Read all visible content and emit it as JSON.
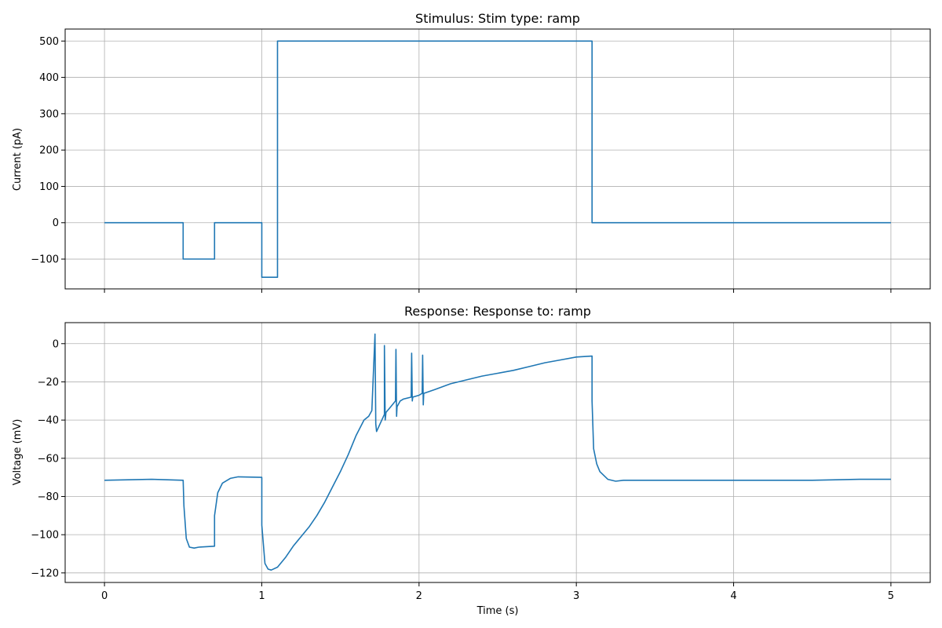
{
  "chart_data": [
    {
      "type": "line",
      "title": "Stimulus: Stim type: ramp",
      "xlabel": "",
      "ylabel": "Current (pA)",
      "xlim": [
        -0.25,
        5.25
      ],
      "ylim": [
        -182,
        533
      ],
      "grid": true,
      "x_ticks": [
        0,
        1,
        2,
        3,
        4,
        5
      ],
      "x_tick_labels_shown": false,
      "y_ticks": [
        -100,
        0,
        100,
        200,
        300,
        400,
        500
      ],
      "y_tick_labels": [
        "−100",
        "0",
        "100",
        "200",
        "300",
        "400",
        "500"
      ],
      "series": [
        {
          "color": "#1f77b4",
          "x": [
            0,
            0.5,
            0.5,
            0.7,
            0.7,
            1.0,
            1.0,
            1.1,
            1.1,
            3.1,
            3.1,
            5.0
          ],
          "y": [
            0,
            0,
            -100,
            -100,
            0,
            0,
            -150,
            -150,
            500,
            500,
            0,
            0
          ]
        }
      ]
    },
    {
      "type": "line",
      "title": "Response: Response to: ramp",
      "xlabel": "Time (s)",
      "ylabel": "Voltage (mV)",
      "xlim": [
        -0.25,
        5.25
      ],
      "ylim": [
        -125,
        11
      ],
      "grid": true,
      "x_ticks": [
        0,
        1,
        2,
        3,
        4,
        5
      ],
      "x_tick_labels": [
        "0",
        "1",
        "2",
        "3",
        "4",
        "5"
      ],
      "y_ticks": [
        -120,
        -100,
        -80,
        -60,
        -40,
        -20,
        0
      ],
      "y_tick_labels": [
        "−120",
        "−100",
        "−80",
        "−60",
        "−40",
        "−20",
        "0"
      ],
      "series": [
        {
          "color": "#1f77b4",
          "x": [
            0,
            0.3,
            0.5,
            0.505,
            0.52,
            0.54,
            0.57,
            0.6,
            0.7,
            0.7,
            0.72,
            0.75,
            0.8,
            0.85,
            1.0,
            1.0,
            1.02,
            1.04,
            1.06,
            1.1,
            1.15,
            1.2,
            1.25,
            1.3,
            1.35,
            1.4,
            1.45,
            1.5,
            1.55,
            1.6,
            1.65,
            1.68,
            1.7,
            1.72,
            1.725,
            1.73,
            1.78,
            1.78,
            1.785,
            1.79,
            1.82,
            1.85,
            1.853,
            1.857,
            1.86,
            1.88,
            1.9,
            1.95,
            1.953,
            1.957,
            1.96,
            2.0,
            2.02,
            2.023,
            2.027,
            2.03,
            2.1,
            2.2,
            2.3,
            2.4,
            2.5,
            2.6,
            2.7,
            2.8,
            2.9,
            3.0,
            3.1,
            3.1,
            3.11,
            3.13,
            3.15,
            3.2,
            3.25,
            3.3,
            3.5,
            4.0,
            4.5,
            4.8,
            5.0
          ],
          "y": [
            -71.5,
            -71,
            -71.5,
            -85,
            -102,
            -106.5,
            -107,
            -106.5,
            -106,
            -90,
            -78,
            -73,
            -70.5,
            -69.7,
            -70,
            -95,
            -115,
            -118,
            -118.5,
            -117,
            -112,
            -106,
            -101,
            -96,
            -90,
            -83,
            -75,
            -67,
            -58,
            -48,
            -40,
            -38,
            -35,
            5,
            -42,
            -46,
            -37,
            -1,
            -40,
            -36,
            -33,
            -30,
            -3,
            -38,
            -33,
            -30,
            -29,
            -28,
            -5,
            -30,
            -28,
            -27,
            -26,
            -6,
            -32,
            -26,
            -24,
            -21,
            -19,
            -17,
            -15.5,
            -14,
            -12,
            -10,
            -8.5,
            -7,
            -6.5,
            -30,
            -55,
            -63,
            -67,
            -71,
            -72,
            -71.5,
            -71.5,
            -71.5,
            -71.5,
            -71,
            -71
          ]
        }
      ]
    }
  ]
}
